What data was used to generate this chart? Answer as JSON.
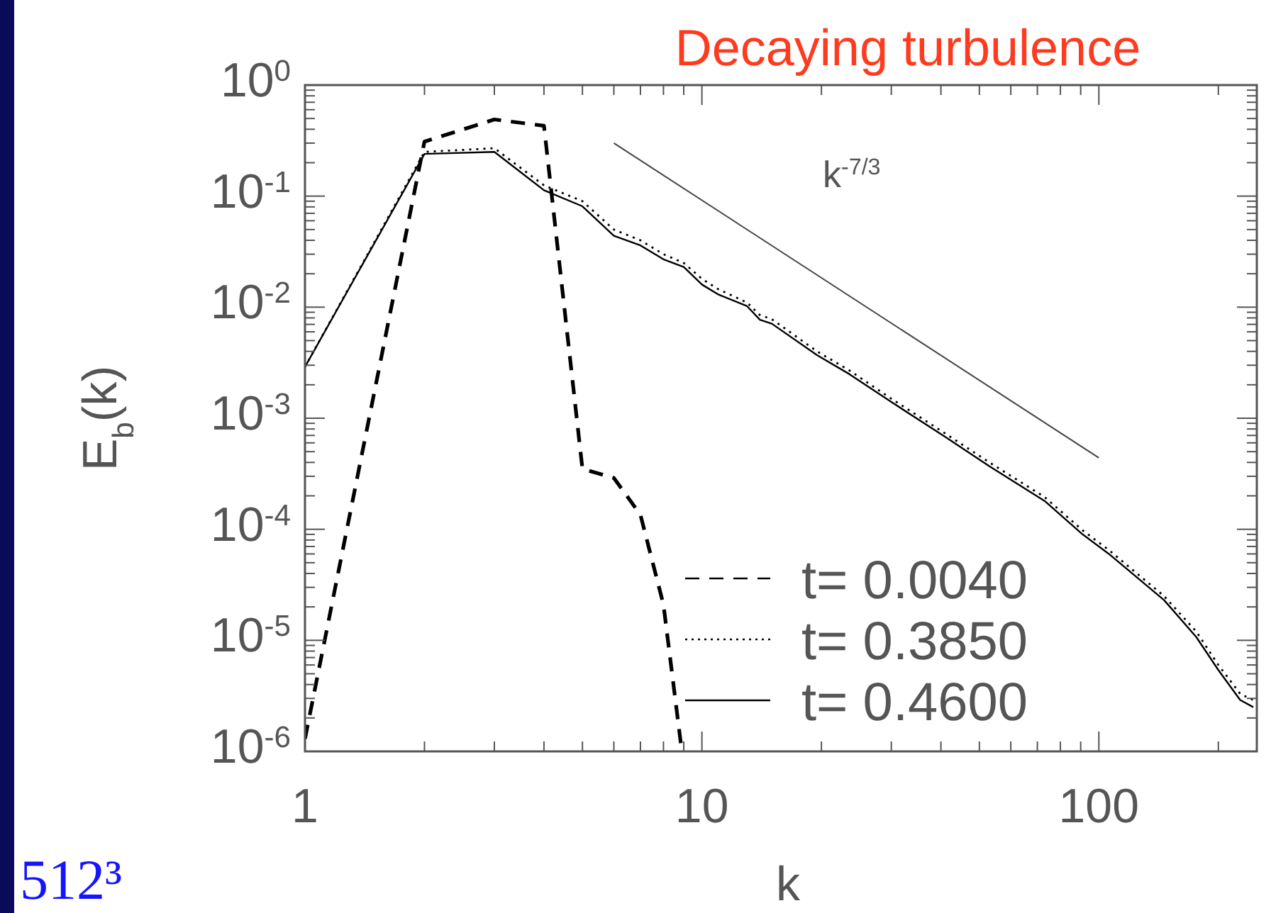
{
  "chart_data": {
    "type": "line",
    "title": "Decaying turbulence",
    "xlabel": "k",
    "ylabel": "E$_{b}$(k)",
    "log": "xy",
    "legend": "bottom right",
    "xlim": [
      1,
      250
    ],
    "ylim": [
      1e-06,
      1
    ],
    "xticks": [
      1,
      {
        "value": 2,
        "label": null
      },
      {
        "value": 3,
        "label": null
      },
      {
        "value": 4,
        "label": null
      },
      {
        "value": 5,
        "label": null
      },
      {
        "value": 6,
        "label": null
      },
      {
        "value": 7,
        "label": null
      },
      {
        "value": 8,
        "label": null
      },
      {
        "value": 9,
        "label": null
      },
      10,
      {
        "value": 20,
        "label": null
      },
      {
        "value": 30,
        "label": null
      },
      {
        "value": 40,
        "label": null
      },
      {
        "value": 50,
        "label": null
      },
      {
        "value": 60,
        "label": null
      },
      {
        "value": 70,
        "label": null
      },
      {
        "value": 80,
        "label": null
      },
      {
        "value": 90,
        "label": null
      },
      100,
      {
        "value": 200,
        "label": null
      }
    ],
    "yticks": [
      {
        "value": 1e-06,
        "label": "10$^{-6}$"
      },
      {
        "value": 2e-06,
        "label": null
      },
      {
        "value": 3e-06,
        "label": null
      },
      {
        "value": 4e-06,
        "label": null
      },
      {
        "value": 5e-06,
        "label": null
      },
      {
        "value": 6e-06,
        "label": null
      },
      {
        "value": 7e-06,
        "label": null
      },
      {
        "value": 8e-06,
        "label": null
      },
      {
        "value": 9e-06,
        "label": null
      },
      {
        "value": 1e-05,
        "label": "10$^{-5}$"
      },
      {
        "value": 2e-05,
        "label": null
      },
      {
        "value": 3e-05,
        "label": null
      },
      {
        "value": 4e-05,
        "label": null
      },
      {
        "value": 5e-05,
        "label": null
      },
      {
        "value": 6e-05,
        "label": null
      },
      {
        "value": 7e-05,
        "label": null
      },
      {
        "value": 8e-05,
        "label": null
      },
      {
        "value": 9e-05,
        "label": null
      },
      {
        "value": 0.0001,
        "label": "10$^{-4}$"
      },
      {
        "value": 0.0002,
        "label": null
      },
      {
        "value": 0.0003,
        "label": null
      },
      {
        "value": 0.0004,
        "label": null
      },
      {
        "value": 0.0005,
        "label": null
      },
      {
        "value": 0.0006,
        "label": null
      },
      {
        "value": 0.0007,
        "label": null
      },
      {
        "value": 0.0008,
        "label": null
      },
      {
        "value": 0.0009,
        "label": null
      },
      {
        "value": 0.001,
        "label": "10$^{-3}$"
      },
      {
        "value": 0.002,
        "label": null
      },
      {
        "value": 0.003,
        "label": null
      },
      {
        "value": 0.004,
        "label": null
      },
      {
        "value": 0.005,
        "label": null
      },
      {
        "value": 0.006,
        "label": null
      },
      {
        "value": 0.007,
        "label": null
      },
      {
        "value": 0.008,
        "label": null
      },
      {
        "value": 0.009,
        "label": null
      },
      {
        "value": 0.01,
        "label": "10$^{-2}$"
      },
      {
        "value": 0.02,
        "label": null
      },
      {
        "value": 0.03,
        "label": null
      },
      {
        "value": 0.04,
        "label": null
      },
      {
        "value": 0.05,
        "label": null
      },
      {
        "value": 0.06,
        "label": null
      },
      {
        "value": 0.07,
        "label": null
      },
      {
        "value": 0.08,
        "label": null
      },
      {
        "value": 0.09,
        "label": null
      },
      {
        "value": 0.1,
        "label": "10$^{-1}$"
      },
      {
        "value": 0.2,
        "label": null
      },
      {
        "value": 0.3,
        "label": null
      },
      {
        "value": 0.4,
        "label": null
      },
      {
        "value": 0.5,
        "label": null
      },
      {
        "value": 0.6,
        "label": null
      },
      {
        "value": 0.7,
        "label": null
      },
      {
        "value": 0.8,
        "label": null
      },
      {
        "value": 0.9,
        "label": null
      },
      {
        "value": 1,
        "label": "10$^{0}$"
      }
    ],
    "series": [
      {
        "name": "t= 0.0040",
        "color": "#000000",
        "line_style": "dashed",
        "x": [
          1,
          2,
          3,
          4,
          5,
          6,
          7,
          8,
          8.9
        ],
        "values": [
          1.3e-06,
          0.31,
          0.49,
          0.43,
          0.00035,
          0.00029,
          0.000135,
          2.1e-05,
          1e-06
        ]
      },
      {
        "name": "t= 0.3850",
        "color": "#000000",
        "line_style": "dotted",
        "x": [
          1,
          2,
          3,
          4,
          5,
          6,
          7,
          8,
          9,
          10,
          11,
          13,
          14,
          15,
          19.5,
          23.5,
          30,
          41,
          53,
          73,
          91,
          106,
          146,
          176,
          200,
          227,
          245
        ],
        "values": [
          0.0029,
          0.25,
          0.27,
          0.125,
          0.09,
          0.05,
          0.04,
          0.03,
          0.025,
          0.018,
          0.0145,
          0.011,
          0.0085,
          0.0078,
          0.004,
          0.0027,
          0.0015,
          0.00073,
          0.0004,
          0.000195,
          9.8e-05,
          6.5e-05,
          2.5e-05,
          1.2e-05,
          6e-06,
          3.3e-06,
          2.9e-06
        ]
      },
      {
        "name": "t= 0.4600",
        "color": "#000000",
        "line_style": "solid",
        "x": [
          1,
          2,
          3,
          4,
          5,
          6,
          7,
          8,
          9,
          10,
          11,
          13,
          14,
          15,
          19.5,
          23.5,
          30,
          41,
          53,
          73,
          91,
          106,
          146,
          176,
          200,
          227,
          245
        ],
        "values": [
          0.0029,
          0.24,
          0.25,
          0.113,
          0.081,
          0.044,
          0.036,
          0.027,
          0.023,
          0.016,
          0.013,
          0.0102,
          0.0077,
          0.0071,
          0.0037,
          0.0025,
          0.0014,
          0.00068,
          0.00037,
          0.00018,
          9e-05,
          6e-05,
          2.3e-05,
          1.07e-05,
          5.4e-06,
          2.9e-06,
          2.5e-06
        ]
      },
      {
        "type": "line",
        "color": "#444444",
        "line_style": "solid",
        "x": [
          6,
          100
        ],
        "values": [
          0.3,
          0.00044
        ]
      }
    ],
    "annotations": [
      "512³",
      "k$^{-7/3}$"
    ]
  }
}
